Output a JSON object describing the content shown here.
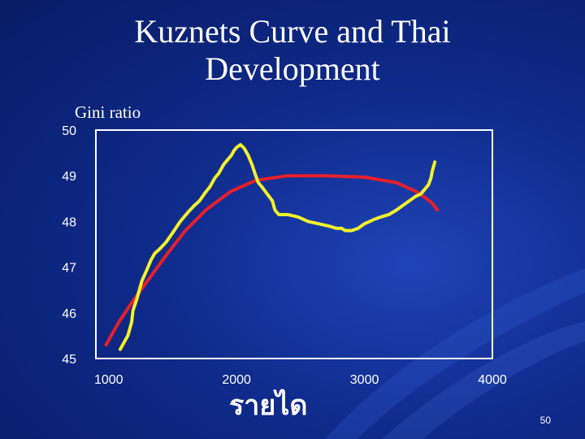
{
  "slide": {
    "title_line1": "Kuznets Curve and Thai",
    "title_line2": "Development",
    "slide_number": "50",
    "x_caption": "รายได"
  },
  "chart_data": {
    "type": "line",
    "ylabel": "Gini ratio",
    "xlabel": "รายได",
    "xlim": [
      900,
      4000
    ],
    "ylim": [
      45,
      50
    ],
    "x_ticks": [
      1000,
      2000,
      3000,
      4000
    ],
    "y_ticks": [
      45,
      46,
      47,
      48,
      49,
      50
    ],
    "grid": false,
    "legend": "none",
    "series": [
      {
        "color": "#e8202a",
        "x": [
          980,
          1080,
          1200,
          1330,
          1460,
          1600,
          1760,
          1950,
          2150,
          2400,
          2700,
          3000,
          3250,
          3430,
          3530,
          3570
        ],
        "y": [
          45.3,
          45.8,
          46.3,
          46.8,
          47.3,
          47.8,
          48.25,
          48.65,
          48.9,
          49.0,
          49.0,
          48.97,
          48.85,
          48.62,
          48.4,
          48.25
        ]
      },
      {
        "color": "#f2f22a",
        "x": [
          1090,
          1120,
          1150,
          1180,
          1190,
          1220,
          1260,
          1300,
          1330,
          1360,
          1400,
          1450,
          1500,
          1560,
          1620,
          1670,
          1710,
          1760,
          1790,
          1810,
          1830,
          1860,
          1880,
          1900,
          1930,
          1960,
          1980,
          2000,
          2030,
          2060,
          2090,
          2120,
          2150,
          2170,
          2200,
          2240,
          2280,
          2300,
          2330,
          2400,
          2480,
          2560,
          2640,
          2720,
          2780,
          2820,
          2850,
          2900,
          2950,
          3000,
          3040,
          3080,
          3130,
          3190,
          3250,
          3300,
          3350,
          3400,
          3440,
          3470,
          3500,
          3520,
          3530,
          3550
        ],
        "y": [
          45.2,
          45.35,
          45.5,
          45.8,
          46.05,
          46.3,
          46.7,
          46.95,
          47.15,
          47.3,
          47.4,
          47.55,
          47.75,
          48.0,
          48.2,
          48.35,
          48.45,
          48.65,
          48.75,
          48.85,
          48.95,
          49.05,
          49.15,
          49.25,
          49.35,
          49.45,
          49.55,
          49.62,
          49.68,
          49.6,
          49.45,
          49.25,
          49.0,
          48.85,
          48.75,
          48.6,
          48.45,
          48.25,
          48.15,
          48.15,
          48.1,
          48.0,
          47.95,
          47.9,
          47.85,
          47.85,
          47.8,
          47.8,
          47.85,
          47.95,
          48.0,
          48.05,
          48.1,
          48.15,
          48.25,
          48.35,
          48.45,
          48.55,
          48.6,
          48.7,
          48.8,
          48.95,
          49.1,
          49.3
        ]
      }
    ]
  }
}
